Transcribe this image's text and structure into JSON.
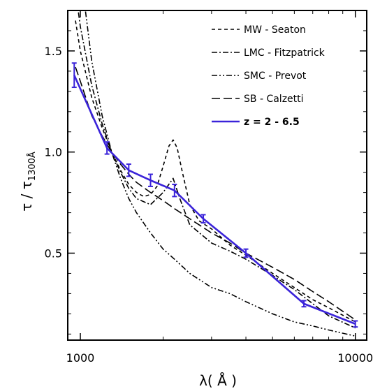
{
  "chart_data": {
    "type": "line",
    "title": "",
    "xlabel": "λ( Å )",
    "ylabel_main": "τ / τ",
    "ylabel_sub": "1300Å",
    "xscale": "log",
    "xlim": [
      900,
      11000
    ],
    "ylim": [
      0.07,
      1.7
    ],
    "x_ticks": [
      1000,
      10000
    ],
    "x_tick_labels": [
      "1000",
      "10000"
    ],
    "y_ticks": [
      0.5,
      1.0,
      1.5
    ],
    "y_tick_labels": [
      "0.5",
      "1.0",
      "1.5"
    ],
    "legend_position": "top-right",
    "series": [
      {
        "name": "MW - Seaton",
        "style": "dashed",
        "color": "#000000",
        "x": [
          960,
          1000,
          1100,
          1200,
          1300,
          1400,
          1500,
          1600,
          1700,
          1800,
          1900,
          2000,
          2100,
          2175,
          2250,
          2350,
          2500,
          2700,
          3000,
          3500,
          4000,
          5000,
          6000,
          7000,
          8000,
          10000
        ],
        "y": [
          1.65,
          1.5,
          1.27,
          1.12,
          1.0,
          0.91,
          0.84,
          0.8,
          0.78,
          0.79,
          0.83,
          0.93,
          1.03,
          1.06,
          1.02,
          0.9,
          0.74,
          0.66,
          0.62,
          0.54,
          0.49,
          0.4,
          0.33,
          0.27,
          0.23,
          0.16
        ]
      },
      {
        "name": "LMC - Fitzpatrick",
        "style": "dashdot",
        "color": "#000000",
        "x": [
          960,
          1000,
          1100,
          1200,
          1300,
          1400,
          1500,
          1600,
          1800,
          2000,
          2175,
          2300,
          2500,
          3000,
          3500,
          4000,
          5000,
          6000,
          7000,
          8000,
          10000
        ],
        "y": [
          1.8,
          1.62,
          1.33,
          1.14,
          1.0,
          0.9,
          0.82,
          0.77,
          0.74,
          0.8,
          0.87,
          0.77,
          0.64,
          0.55,
          0.51,
          0.47,
          0.39,
          0.32,
          0.25,
          0.19,
          0.13
        ]
      },
      {
        "name": "SMC - Prevot",
        "style": "dashdotdot",
        "color": "#000000",
        "x": [
          960,
          1000,
          1100,
          1200,
          1300,
          1400,
          1500,
          1600,
          1800,
          2000,
          2200,
          2500,
          3000,
          3500,
          4000,
          5000,
          6000,
          7000,
          8000,
          10000
        ],
        "y": [
          2.2,
          1.9,
          1.45,
          1.18,
          1.0,
          0.87,
          0.77,
          0.7,
          0.6,
          0.52,
          0.47,
          0.4,
          0.33,
          0.3,
          0.26,
          0.2,
          0.16,
          0.14,
          0.12,
          0.09
        ]
      },
      {
        "name": "SB - Calzetti",
        "style": "longdash",
        "color": "#000000",
        "x": [
          960,
          1000,
          1100,
          1200,
          1300,
          1400,
          1500,
          1600,
          1800,
          2000,
          2200,
          2500,
          3000,
          3500,
          4000,
          5000,
          6000,
          7000,
          8000,
          10000
        ],
        "y": [
          1.42,
          1.35,
          1.18,
          1.08,
          1.0,
          0.94,
          0.89,
          0.85,
          0.8,
          0.76,
          0.72,
          0.67,
          0.6,
          0.55,
          0.5,
          0.43,
          0.37,
          0.31,
          0.26,
          0.17
        ]
      },
      {
        "name": "z = 2 - 6.5",
        "style": "solid",
        "color": "#3a23d9",
        "x": [
          950,
          1250,
          1500,
          1800,
          2200,
          2800,
          4000,
          6500,
          10000
        ],
        "y": [
          1.38,
          1.02,
          0.91,
          0.86,
          0.81,
          0.67,
          0.5,
          0.25,
          0.15
        ],
        "err": [
          0.06,
          0.03,
          0.03,
          0.03,
          0.03,
          0.02,
          0.02,
          0.015,
          0.015
        ]
      }
    ]
  }
}
